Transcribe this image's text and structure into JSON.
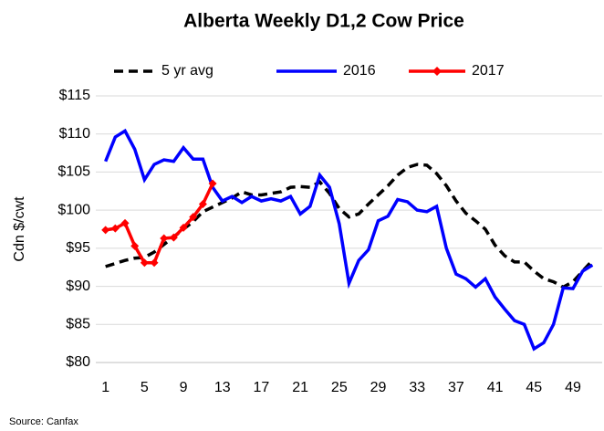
{
  "chart_data": {
    "type": "line",
    "title": "Alberta Weekly D1,2 Cow Price",
    "ylabel": "Cdn $/cwt",
    "source": "Source:  Canfax",
    "x": [
      1,
      2,
      3,
      4,
      5,
      6,
      7,
      8,
      9,
      10,
      11,
      12,
      13,
      14,
      15,
      16,
      17,
      18,
      19,
      20,
      21,
      22,
      23,
      24,
      25,
      26,
      27,
      28,
      29,
      30,
      31,
      32,
      33,
      34,
      35,
      36,
      37,
      38,
      39,
      40,
      41,
      42,
      43,
      44,
      45,
      46,
      47,
      48,
      49,
      50,
      51
    ],
    "xlim": [
      0,
      52
    ],
    "xticks": [
      1,
      5,
      9,
      13,
      17,
      21,
      25,
      29,
      33,
      37,
      41,
      45,
      49
    ],
    "ylim": [
      80,
      115
    ],
    "yticks": [
      {
        "value": 80,
        "label": "$80"
      },
      {
        "value": 85,
        "label": "$85"
      },
      {
        "value": 90,
        "label": "$90"
      },
      {
        "value": 95,
        "label": "$95"
      },
      {
        "value": 100,
        "label": "$100"
      },
      {
        "value": 105,
        "label": "$105"
      },
      {
        "value": 110,
        "label": "$110"
      },
      {
        "value": 115,
        "label": "$115"
      }
    ],
    "grid": true,
    "legend": "top",
    "series": [
      {
        "name": "5 yr avg",
        "color": "#000000",
        "dash": true,
        "values": [
          92.6,
          93,
          93.4,
          93.7,
          93.8,
          94.5,
          95.5,
          96.5,
          97.5,
          98.5,
          99.8,
          100.4,
          101,
          101.6,
          102.4,
          102,
          102,
          102.2,
          102.4,
          103,
          103.1,
          103,
          103.7,
          102.2,
          100.2,
          99.1,
          99.5,
          100.8,
          102,
          103.2,
          104.6,
          105.6,
          106,
          105.9,
          104.8,
          103.2,
          101.2,
          99.6,
          98.6,
          97.5,
          95.4,
          94,
          93.2,
          93.2,
          92,
          91,
          90.6,
          89.9,
          90.6,
          92,
          93.4
        ]
      },
      {
        "name": "2016",
        "color": "#0000ff",
        "values": [
          106.4,
          109.6,
          110.4,
          108,
          104,
          106,
          106.6,
          106.4,
          108.2,
          106.7,
          106.7,
          103,
          101.2,
          101.8,
          101,
          101.8,
          101.2,
          101.5,
          101.2,
          101.8,
          99.5,
          100.5,
          104.6,
          103,
          98.2,
          90.4,
          93.4,
          94.8,
          98.6,
          99.2,
          101.4,
          101.1,
          100,
          99.8,
          100.5,
          95,
          91.6,
          91,
          89.9,
          91,
          88.6,
          87,
          85.5,
          85,
          81.8,
          82.6,
          85,
          89.8,
          89.7,
          92,
          92.8
        ]
      },
      {
        "name": "2017",
        "color": "#ff0000",
        "marker": "diamond",
        "values": [
          97.4,
          97.6,
          98.3,
          95.3,
          93.1,
          93.1,
          96.3,
          96.4,
          97.7,
          99.1,
          100.8,
          103.5,
          null,
          null,
          null,
          null,
          null,
          null,
          null,
          null,
          null,
          null,
          null,
          null,
          null,
          null,
          null,
          null,
          null,
          null,
          null,
          null,
          null,
          null,
          null,
          null,
          null,
          null,
          null,
          null,
          null,
          null,
          null,
          null,
          null,
          null,
          null,
          null,
          null,
          null,
          null
        ]
      }
    ]
  }
}
